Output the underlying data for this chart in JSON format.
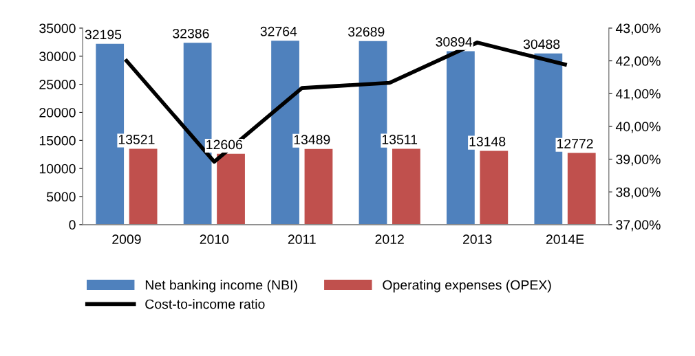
{
  "chart_data": {
    "type": "bar",
    "categories": [
      "2009",
      "2010",
      "2011",
      "2012",
      "2013",
      "2014E"
    ],
    "series": [
      {
        "name": "Net banking income (NBI)",
        "color": "#4f81bd",
        "values": [
          32195,
          32386,
          32764,
          32689,
          30894,
          30488
        ],
        "value_labels": [
          "32195",
          "32386",
          "32764",
          "32689",
          "30894",
          "30488"
        ]
      },
      {
        "name": "Operating expenses (OPEX)",
        "color": "#c0504d",
        "values": [
          13521,
          12606,
          13489,
          13511,
          13148,
          12772
        ],
        "value_labels": [
          "13521",
          "12606",
          "13489",
          "13511",
          "13148",
          "12772"
        ]
      },
      {
        "name": "Cost-to-income ratio",
        "type": "line",
        "axis": "y2",
        "color": "#000000",
        "values": [
          42.0,
          38.92,
          41.17,
          41.33,
          42.56,
          41.89
        ]
      }
    ],
    "ylim": [
      0,
      35000
    ],
    "yticks": [
      0,
      5000,
      10000,
      15000,
      20000,
      25000,
      30000,
      35000
    ],
    "y2lim": [
      37,
      43
    ],
    "y2ticks": [
      {
        "value": 37,
        "label": "37,00%"
      },
      {
        "value": 38,
        "label": "38,00%"
      },
      {
        "value": 39,
        "label": "39,00%"
      },
      {
        "value": 40,
        "label": "40,00%"
      },
      {
        "value": 41,
        "label": "41,00%"
      },
      {
        "value": 42,
        "label": "42,00%"
      },
      {
        "value": 43,
        "label": "43,00%"
      }
    ],
    "legend": "bottom",
    "grid": false,
    "marker": "none",
    "line_style": "solid"
  }
}
